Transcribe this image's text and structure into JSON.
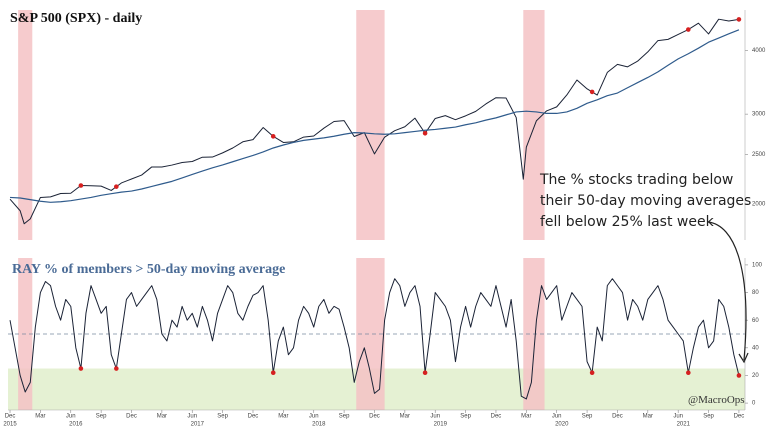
{
  "chart_data": [
    {
      "type": "line",
      "title": "S&P 500 (SPX) - daily",
      "log_scale": true,
      "xlim": [
        -0.2,
        72.6
      ],
      "ylim": [
        1700,
        4800
      ],
      "yticks": [
        2000,
        2500,
        3000,
        4000
      ],
      "series": [
        {
          "color": "#1b2336",
          "x": [
            0,
            1,
            1.4,
            2,
            3,
            4,
            5,
            6,
            7,
            8,
            9,
            10,
            11,
            12,
            13,
            14,
            15,
            16,
            17,
            18,
            19,
            20,
            21,
            22,
            23,
            24,
            25,
            26,
            27,
            28,
            29,
            30,
            31,
            32,
            33,
            34,
            35,
            36,
            37,
            38,
            39,
            40,
            41,
            42,
            43,
            44,
            45,
            46,
            47,
            48,
            49,
            50,
            50.7,
            51,
            52,
            53,
            54,
            55,
            56,
            57,
            58,
            59,
            60,
            61,
            62,
            63,
            64,
            65,
            66,
            67,
            68,
            69,
            70,
            71,
            72
          ],
          "values": [
            2044,
            1940,
            1829,
            1870,
            2060,
            2065,
            2097,
            2099,
            2174,
            2171,
            2168,
            2126,
            2199,
            2239,
            2279,
            2364,
            2363,
            2384,
            2412,
            2423,
            2470,
            2472,
            2519,
            2575,
            2648,
            2674,
            2824,
            2714,
            2640,
            2648,
            2705,
            2718,
            2816,
            2902,
            2914,
            2712,
            2760,
            2507,
            2704,
            2784,
            2834,
            2946,
            2752,
            2942,
            2980,
            2926,
            2977,
            3038,
            3141,
            3231,
            3226,
            2954,
            2237,
            2585,
            2912,
            3044,
            3100,
            3271,
            3500,
            3363,
            3270,
            3622,
            3756,
            3714,
            3811,
            3973,
            4181,
            4204,
            4298,
            4395,
            4523,
            4308,
            4605,
            4567,
            4600
          ]
        },
        {
          "color": "#2f5b8c",
          "x": [
            0,
            1,
            2,
            3,
            4,
            5,
            6,
            7,
            8,
            9,
            10,
            11,
            12,
            13,
            14,
            15,
            16,
            17,
            18,
            19,
            20,
            21,
            22,
            23,
            24,
            25,
            26,
            27,
            28,
            29,
            30,
            31,
            32,
            33,
            34,
            35,
            36,
            37,
            38,
            39,
            40,
            41,
            42,
            43,
            44,
            45,
            46,
            47,
            48,
            49,
            50,
            51,
            52,
            53,
            54,
            55,
            56,
            57,
            58,
            59,
            60,
            61,
            62,
            63,
            64,
            65,
            66,
            67,
            68,
            69,
            70,
            71,
            72
          ],
          "values": [
            2060,
            2055,
            2040,
            2025,
            2015,
            2020,
            2030,
            2045,
            2060,
            2080,
            2095,
            2110,
            2120,
            2140,
            2165,
            2190,
            2215,
            2250,
            2285,
            2320,
            2355,
            2385,
            2420,
            2455,
            2490,
            2530,
            2575,
            2610,
            2640,
            2665,
            2680,
            2695,
            2715,
            2740,
            2760,
            2755,
            2745,
            2740,
            2745,
            2760,
            2775,
            2790,
            2800,
            2815,
            2830,
            2860,
            2885,
            2920,
            2950,
            2990,
            3030,
            3040,
            3030,
            3010,
            3010,
            3030,
            3080,
            3150,
            3200,
            3260,
            3300,
            3380,
            3460,
            3540,
            3630,
            3740,
            3850,
            3940,
            4040,
            4150,
            4230,
            4310,
            4390
          ]
        }
      ],
      "markers": [
        7,
        10.5,
        26,
        41,
        57.5,
        67,
        72
      ],
      "marker_color": "#d62020",
      "shaded_ranges": [
        [
          0.8,
          2.2
        ],
        [
          34.2,
          37
        ],
        [
          50.7,
          52.8
        ]
      ],
      "shade_color": "#f4c2c4",
      "annotation": [
        "The % stocks trading below",
        "their 50-day moving averages",
        "fell below 25% last week"
      ]
    },
    {
      "type": "line",
      "title": "RAY % of members > 50-day moving average",
      "xlim": [
        -0.2,
        72.6
      ],
      "ylim": [
        -5,
        105
      ],
      "yticks": [
        0,
        20,
        40,
        60,
        80,
        100
      ],
      "xticks": [
        {
          "value": 0,
          "label": "Dec"
        },
        {
          "value": 3,
          "label": "Mar"
        },
        {
          "value": 6,
          "label": "Jun"
        },
        {
          "value": 9,
          "label": "Sep"
        },
        {
          "value": 12,
          "label": "Dec"
        },
        {
          "value": 15,
          "label": "Mar"
        },
        {
          "value": 18,
          "label": "Jun"
        },
        {
          "value": 21,
          "label": "Sep"
        },
        {
          "value": 24,
          "label": "Dec"
        },
        {
          "value": 27,
          "label": "Mar"
        },
        {
          "value": 30,
          "label": "Jun"
        },
        {
          "value": 33,
          "label": "Sep"
        },
        {
          "value": 36,
          "label": "Dec"
        },
        {
          "value": 39,
          "label": "Mar"
        },
        {
          "value": 42,
          "label": "Jun"
        },
        {
          "value": 45,
          "label": "Sep"
        },
        {
          "value": 48,
          "label": "Dec"
        },
        {
          "value": 51,
          "label": "Mar"
        },
        {
          "value": 54,
          "label": "Jun"
        },
        {
          "value": 57,
          "label": "Sep"
        },
        {
          "value": 60,
          "label": "Dec"
        },
        {
          "value": 63,
          "label": "Mar"
        },
        {
          "value": 66,
          "label": "Jun"
        },
        {
          "value": 69,
          "label": "Sep"
        },
        {
          "value": 72,
          "label": "Dec"
        }
      ],
      "year_labels": [
        {
          "value": 0,
          "label": "2015"
        },
        {
          "value": 6.5,
          "label": "2016"
        },
        {
          "value": 18.5,
          "label": "2017"
        },
        {
          "value": 30.5,
          "label": "2018"
        },
        {
          "value": 42.5,
          "label": "2019"
        },
        {
          "value": 54.5,
          "label": "2020"
        },
        {
          "value": 66.5,
          "label": "2021"
        }
      ],
      "series": [
        {
          "color": "#1b2336",
          "x": [
            0,
            0.5,
            1,
            1.5,
            2,
            2.5,
            3,
            3.5,
            4,
            4.5,
            5,
            5.5,
            6,
            6.5,
            7,
            7.5,
            8,
            8.5,
            9,
            9.5,
            10,
            10.5,
            11,
            11.5,
            12,
            12.5,
            13,
            13.5,
            14,
            14.5,
            15,
            15.5,
            16,
            16.5,
            17,
            17.5,
            18,
            18.5,
            19,
            19.5,
            20,
            20.5,
            21,
            21.5,
            22,
            22.5,
            23,
            23.5,
            24,
            24.5,
            25,
            25.5,
            26,
            26.5,
            27,
            27.5,
            28,
            28.5,
            29,
            29.5,
            30,
            30.5,
            31,
            31.5,
            32,
            32.5,
            33,
            33.5,
            34,
            34.5,
            35,
            35.5,
            36,
            36.5,
            37,
            37.5,
            38,
            38.5,
            39,
            39.5,
            40,
            40.5,
            41,
            41.5,
            42,
            42.5,
            43,
            43.5,
            44,
            44.5,
            45,
            45.5,
            46,
            46.5,
            47,
            47.5,
            48,
            48.5,
            49,
            49.5,
            50,
            50.5,
            51,
            51.5,
            52,
            52.5,
            53,
            53.5,
            54,
            54.5,
            55,
            55.5,
            56,
            56.5,
            57,
            57.5,
            58,
            58.5,
            59,
            59.5,
            60,
            60.5,
            61,
            61.5,
            62,
            62.5,
            63,
            63.5,
            64,
            64.5,
            65,
            65.5,
            66,
            66.5,
            67,
            67.5,
            68,
            68.5,
            69,
            69.5,
            70,
            70.5,
            71,
            71.5,
            72
          ],
          "values": [
            60,
            40,
            20,
            8,
            15,
            55,
            80,
            88,
            85,
            70,
            60,
            75,
            70,
            40,
            25,
            65,
            85,
            75,
            65,
            70,
            35,
            25,
            50,
            75,
            80,
            70,
            75,
            80,
            85,
            75,
            50,
            45,
            60,
            55,
            70,
            60,
            65,
            55,
            70,
            60,
            45,
            65,
            75,
            85,
            80,
            65,
            60,
            70,
            78,
            80,
            85,
            60,
            22,
            45,
            55,
            35,
            40,
            60,
            70,
            65,
            55,
            70,
            75,
            65,
            70,
            68,
            55,
            40,
            15,
            30,
            40,
            25,
            7,
            10,
            60,
            80,
            90,
            85,
            70,
            80,
            85,
            70,
            22,
            50,
            80,
            75,
            70,
            60,
            30,
            55,
            70,
            55,
            70,
            80,
            75,
            70,
            85,
            70,
            55,
            75,
            45,
            5,
            3,
            15,
            60,
            85,
            75,
            80,
            85,
            60,
            70,
            80,
            75,
            70,
            30,
            22,
            55,
            45,
            85,
            90,
            85,
            80,
            60,
            75,
            70,
            60,
            75,
            80,
            85,
            75,
            60,
            55,
            50,
            45,
            22,
            40,
            55,
            60,
            40,
            45,
            75,
            70,
            55,
            35,
            20
          ]
        }
      ],
      "reference_line": 50,
      "zone_below": 25,
      "zone_color": "#e5f1d3",
      "markers": [
        7,
        10.5,
        26,
        41,
        57.5,
        67,
        72
      ],
      "marker_color": "#d62020",
      "shaded_ranges": [
        [
          0.8,
          2.2
        ],
        [
          34.2,
          37
        ],
        [
          50.7,
          52.8
        ]
      ],
      "shade_color": "#f4c2c4",
      "watermark": "@MacroOps"
    }
  ]
}
